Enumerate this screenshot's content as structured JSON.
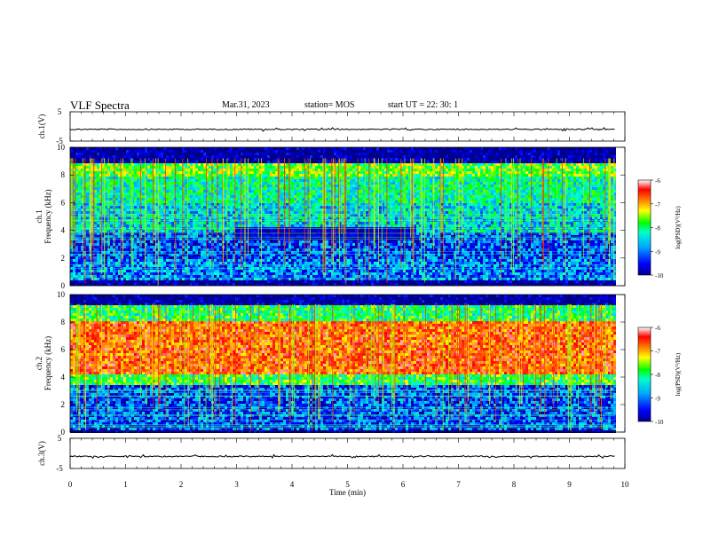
{
  "header": {
    "title": "VLF Spectra",
    "date": "Mar.31, 2023",
    "station": "station= MOS",
    "start_ut": "start  UT =   22: 30: 1"
  },
  "chart_data": [
    {
      "type": "line",
      "panel": "ch1-waveform",
      "ylabel": "ch.1(V)",
      "ylim": [
        -5,
        5
      ],
      "yticks": [
        "5",
        "-5"
      ],
      "baseline_value": -1,
      "x": [
        0,
        10
      ]
    },
    {
      "type": "heatmap",
      "panel": "ch1-spectrogram",
      "ylabel": "ch.1\nFrequency (kHz)",
      "ylabel_line1": "ch.1",
      "ylabel_line2": "Frequency (kHz)",
      "ylim": [
        0,
        10
      ],
      "yticks": [
        "0",
        "2",
        "4",
        "6",
        "8",
        "10"
      ],
      "xlim": [
        0,
        10
      ],
      "data_end_min": 9.83,
      "bands": [
        {
          "f0": 0,
          "f1": 0.5,
          "level": -10
        },
        {
          "f0": 0.5,
          "f1": 2,
          "level": -9.1
        },
        {
          "f0": 2,
          "f1": 4,
          "level": -9.3
        },
        {
          "f0": 4,
          "f1": 6,
          "level": -8.7
        },
        {
          "f0": 6,
          "f1": 8,
          "level": -8.4
        },
        {
          "f0": 8,
          "f1": 9,
          "level": -7.9
        },
        {
          "f0": 9,
          "f1": 10,
          "level": -10
        }
      ],
      "quiet_region": {
        "t0": 2.95,
        "t1": 6.2,
        "f0": 3.3,
        "f1": 4.3,
        "level": -10
      },
      "colorbar": {
        "label": "log(PSD)(V²/Hz)",
        "range": [
          -10,
          -6
        ],
        "ticks": [
          "-6",
          "-7",
          "-8",
          "-9",
          "-10"
        ]
      }
    },
    {
      "type": "heatmap",
      "panel": "ch2-spectrogram",
      "ylabel": "ch.2\nFrequency (kHz)",
      "ylabel_line1": "ch.2",
      "ylabel_line2": "Frequency (kHz)",
      "ylim": [
        0,
        10
      ],
      "yticks": [
        "0",
        "2",
        "4",
        "6",
        "8",
        "10"
      ],
      "xlim": [
        0,
        10
      ],
      "data_end_min": 9.83,
      "bands": [
        {
          "f0": 0,
          "f1": 0.3,
          "level": -10
        },
        {
          "f0": 0.3,
          "f1": 3.5,
          "level": -9.3
        },
        {
          "f0": 3.5,
          "f1": 4.2,
          "level": -8.1
        },
        {
          "f0": 4.2,
          "f1": 8.2,
          "level": -6.8
        },
        {
          "f0": 8.2,
          "f1": 9.3,
          "level": -8.2
        },
        {
          "f0": 9.3,
          "f1": 10,
          "level": -10
        }
      ],
      "colorbar": {
        "label": "log(PSD)(V²/Hz)",
        "range": [
          -10,
          -6
        ],
        "ticks": [
          "-6",
          "-7",
          "-8",
          "-9",
          "-10"
        ]
      }
    },
    {
      "type": "line",
      "panel": "ch3-waveform",
      "ylabel": "ch.3(V)",
      "ylim": [
        -5,
        5
      ],
      "yticks": [
        "5",
        "-5"
      ],
      "baseline_value": -1,
      "x": [
        0,
        10
      ],
      "xlabel": "Time (min)",
      "xticks": [
        "0",
        "1",
        "2",
        "3",
        "4",
        "5",
        "6",
        "7",
        "8",
        "9",
        "10"
      ]
    }
  ],
  "colors": {
    "colormap": [
      "#00008b",
      "#0000ff",
      "#00aaff",
      "#00ffcc",
      "#00ff00",
      "#ffff00",
      "#ff8800",
      "#ff0000",
      "#ffffff"
    ]
  }
}
